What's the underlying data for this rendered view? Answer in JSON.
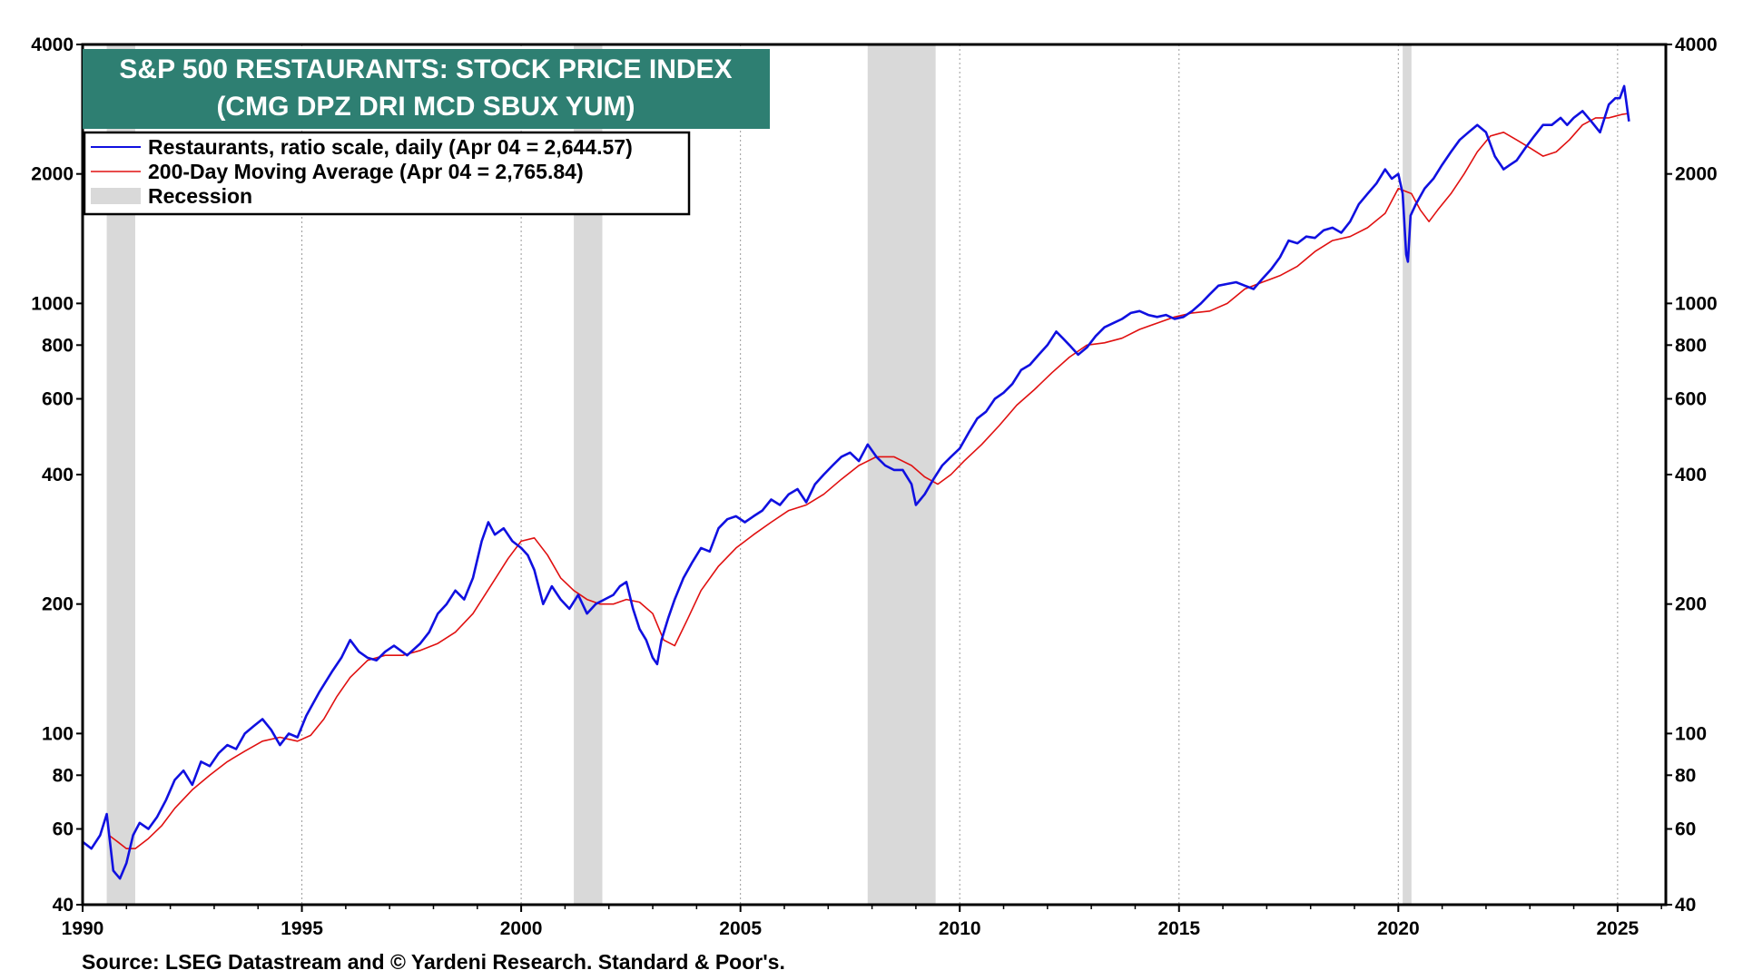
{
  "chart_data": {
    "type": "line",
    "title": "S&P 500 RESTAURANTS: STOCK PRICE INDEX",
    "subtitle": "(CMG DPZ DRI MCD SBUX YUM)",
    "source": "Source: LSEG Datastream and © Yardeni Research. Standard & Poor's.",
    "y_scale": "log",
    "xlim": [
      1990,
      2026.1
    ],
    "ylim": [
      40,
      4000
    ],
    "x_ticks": [
      1990,
      1995,
      2000,
      2005,
      2010,
      2015,
      2020,
      2025
    ],
    "x_tick_labels": [
      "1990",
      "1995",
      "2000",
      "2005",
      "2010",
      "2015",
      "2020",
      "2025"
    ],
    "y_ticks": [
      40,
      60,
      80,
      100,
      200,
      400,
      600,
      800,
      1000,
      2000,
      4000
    ],
    "y_tick_labels": [
      "40",
      "60",
      "80",
      "100",
      "200",
      "400",
      "600",
      "800",
      "1000",
      "2000",
      "4000"
    ],
    "grid": "vertical dotted at year ticks",
    "legend_position": "top-left",
    "colors": {
      "series_price": "#1010e0",
      "series_ma": "#e01010",
      "recession": "#d9d9d9",
      "title_bg": "#2e7f72"
    },
    "recessions": [
      {
        "start": 1990.55,
        "end": 1991.2
      },
      {
        "start": 2001.2,
        "end": 2001.85
      },
      {
        "start": 2007.9,
        "end": 2009.45
      },
      {
        "start": 2020.1,
        "end": 2020.3
      }
    ],
    "legend": [
      {
        "label": "Restaurants, ratio scale, daily (Apr 04 = 2,644.57)",
        "kind": "line",
        "color": "#1010e0"
      },
      {
        "label": "200-Day Moving Average (Apr 04 = 2,765.84)",
        "kind": "line",
        "color": "#e01010"
      },
      {
        "label": "Recession",
        "kind": "box",
        "color": "#d9d9d9"
      }
    ],
    "series": [
      {
        "name": "Restaurants, ratio scale, daily (Apr 04 = 2,644.57)",
        "x": [
          1990.0,
          1990.2,
          1990.4,
          1990.55,
          1990.7,
          1990.85,
          1991.0,
          1991.15,
          1991.3,
          1991.5,
          1991.7,
          1991.9,
          1992.1,
          1992.3,
          1992.5,
          1992.7,
          1992.9,
          1993.1,
          1993.3,
          1993.5,
          1993.7,
          1993.9,
          1994.1,
          1994.3,
          1994.5,
          1994.7,
          1994.9,
          1995.1,
          1995.4,
          1995.7,
          1995.9,
          1996.1,
          1996.3,
          1996.5,
          1996.7,
          1996.9,
          1997.1,
          1997.4,
          1997.7,
          1997.9,
          1998.1,
          1998.3,
          1998.5,
          1998.7,
          1998.9,
          1999.1,
          1999.25,
          1999.4,
          1999.6,
          1999.8,
          2000.0,
          2000.15,
          2000.3,
          2000.5,
          2000.7,
          2000.9,
          2001.1,
          2001.3,
          2001.5,
          2001.7,
          2001.9,
          2002.1,
          2002.25,
          2002.4,
          2002.55,
          2002.7,
          2002.85,
          2003.0,
          2003.1,
          2003.2,
          2003.35,
          2003.5,
          2003.7,
          2003.9,
          2004.1,
          2004.3,
          2004.5,
          2004.7,
          2004.9,
          2005.1,
          2005.3,
          2005.5,
          2005.7,
          2005.9,
          2006.1,
          2006.3,
          2006.5,
          2006.7,
          2006.9,
          2007.1,
          2007.3,
          2007.5,
          2007.7,
          2007.9,
          2008.1,
          2008.3,
          2008.5,
          2008.7,
          2008.9,
          2009.0,
          2009.2,
          2009.4,
          2009.6,
          2009.8,
          2010.0,
          2010.2,
          2010.4,
          2010.6,
          2010.8,
          2011.0,
          2011.2,
          2011.4,
          2011.6,
          2011.8,
          2012.0,
          2012.2,
          2012.35,
          2012.5,
          2012.7,
          2012.9,
          2013.1,
          2013.3,
          2013.5,
          2013.7,
          2013.9,
          2014.1,
          2014.3,
          2014.5,
          2014.7,
          2014.9,
          2015.1,
          2015.3,
          2015.5,
          2015.7,
          2015.9,
          2016.1,
          2016.3,
          2016.5,
          2016.7,
          2016.9,
          2017.1,
          2017.3,
          2017.5,
          2017.7,
          2017.9,
          2018.1,
          2018.3,
          2018.5,
          2018.7,
          2018.9,
          2019.1,
          2019.3,
          2019.5,
          2019.7,
          2019.85,
          2020.0,
          2020.1,
          2020.18,
          2020.22,
          2020.28,
          2020.4,
          2020.6,
          2020.8,
          2021.0,
          2021.2,
          2021.4,
          2021.6,
          2021.8,
          2022.0,
          2022.2,
          2022.4,
          2022.55,
          2022.7,
          2022.9,
          2023.1,
          2023.3,
          2023.5,
          2023.7,
          2023.85,
          2024.0,
          2024.2,
          2024.4,
          2024.6,
          2024.8,
          2024.95,
          2025.05,
          2025.15,
          2025.26
        ],
        "values": [
          56,
          54,
          58,
          65,
          48,
          46,
          50,
          58,
          62,
          60,
          64,
          70,
          78,
          82,
          76,
          86,
          84,
          90,
          94,
          92,
          100,
          104,
          108,
          102,
          94,
          100,
          98,
          110,
          125,
          140,
          150,
          165,
          155,
          150,
          148,
          155,
          160,
          152,
          162,
          172,
          190,
          200,
          215,
          205,
          230,
          280,
          310,
          290,
          300,
          280,
          270,
          260,
          240,
          200,
          220,
          205,
          195,
          210,
          190,
          200,
          205,
          210,
          220,
          225,
          195,
          175,
          165,
          150,
          145,
          165,
          185,
          205,
          230,
          250,
          270,
          265,
          300,
          315,
          320,
          310,
          320,
          330,
          350,
          340,
          360,
          370,
          345,
          380,
          400,
          420,
          440,
          450,
          430,
          470,
          440,
          420,
          410,
          410,
          380,
          340,
          360,
          390,
          420,
          440,
          460,
          500,
          540,
          560,
          600,
          620,
          650,
          700,
          720,
          760,
          800,
          860,
          830,
          800,
          760,
          790,
          840,
          880,
          900,
          920,
          950,
          960,
          940,
          930,
          940,
          920,
          930,
          960,
          1000,
          1050,
          1100,
          1110,
          1120,
          1100,
          1080,
          1140,
          1200,
          1280,
          1400,
          1380,
          1430,
          1420,
          1480,
          1500,
          1460,
          1550,
          1700,
          1800,
          1900,
          2050,
          1950,
          2000,
          1800,
          1300,
          1250,
          1600,
          1700,
          1850,
          1950,
          2100,
          2250,
          2400,
          2500,
          2600,
          2500,
          2200,
          2050,
          2100,
          2150,
          2300,
          2450,
          2600,
          2600,
          2700,
          2600,
          2700,
          2800,
          2650,
          2500,
          2900,
          3000,
          3000,
          3200,
          2650
        ]
      },
      {
        "name": "200-Day Moving Average (Apr 04 = 2,765.84)",
        "x": [
          1990.6,
          1990.8,
          1991.0,
          1991.2,
          1991.5,
          1991.8,
          1992.1,
          1992.5,
          1992.9,
          1993.3,
          1993.7,
          1994.1,
          1994.5,
          1994.9,
          1995.2,
          1995.5,
          1995.8,
          1996.1,
          1996.5,
          1996.9,
          1997.3,
          1997.7,
          1998.1,
          1998.5,
          1998.9,
          1999.3,
          1999.7,
          2000.0,
          2000.3,
          2000.6,
          2000.9,
          2001.2,
          2001.5,
          2001.8,
          2002.1,
          2002.4,
          2002.7,
          2003.0,
          2003.25,
          2003.5,
          2003.8,
          2004.1,
          2004.5,
          2004.9,
          2005.3,
          2005.7,
          2006.1,
          2006.5,
          2006.9,
          2007.3,
          2007.7,
          2008.1,
          2008.5,
          2008.9,
          2009.2,
          2009.5,
          2009.8,
          2010.1,
          2010.5,
          2010.9,
          2011.3,
          2011.7,
          2012.1,
          2012.5,
          2012.9,
          2013.3,
          2013.7,
          2014.1,
          2014.5,
          2014.9,
          2015.3,
          2015.7,
          2016.1,
          2016.5,
          2016.9,
          2017.3,
          2017.7,
          2018.1,
          2018.5,
          2018.9,
          2019.3,
          2019.7,
          2020.0,
          2020.3,
          2020.5,
          2020.7,
          2020.9,
          2021.2,
          2021.5,
          2021.8,
          2022.1,
          2022.4,
          2022.7,
          2023.0,
          2023.3,
          2023.6,
          2023.9,
          2024.2,
          2024.5,
          2024.8,
          2025.1,
          2025.26
        ],
        "values": [
          58,
          56,
          54,
          54,
          57,
          61,
          67,
          74,
          80,
          86,
          91,
          96,
          98,
          96,
          99,
          108,
          122,
          135,
          148,
          152,
          152,
          156,
          162,
          172,
          190,
          220,
          255,
          280,
          285,
          260,
          230,
          215,
          205,
          200,
          200,
          205,
          202,
          190,
          165,
          160,
          185,
          215,
          245,
          270,
          290,
          310,
          330,
          340,
          360,
          390,
          420,
          440,
          440,
          420,
          395,
          380,
          400,
          430,
          470,
          520,
          580,
          630,
          690,
          750,
          800,
          810,
          830,
          870,
          900,
          930,
          950,
          960,
          1000,
          1080,
          1120,
          1160,
          1220,
          1320,
          1400,
          1430,
          1500,
          1620,
          1850,
          1800,
          1650,
          1550,
          1650,
          1800,
          2000,
          2250,
          2450,
          2500,
          2400,
          2300,
          2200,
          2250,
          2400,
          2600,
          2700,
          2700,
          2750,
          2765.84
        ]
      }
    ]
  }
}
